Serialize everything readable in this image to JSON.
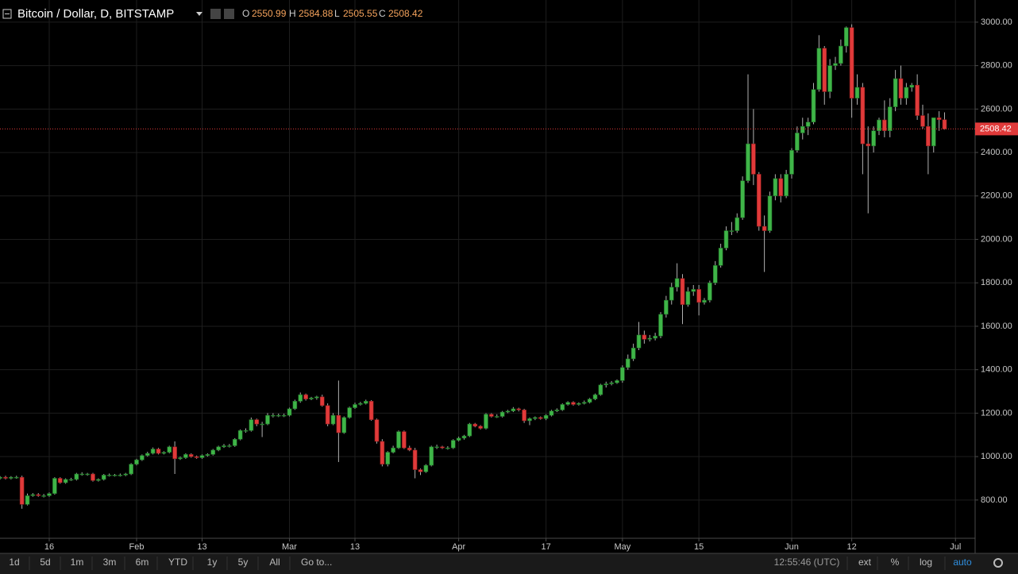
{
  "chart_data": {
    "type": "candlestick",
    "title": "Bitcoin / Dollar, D, BITSTAMP",
    "ohlc_labels": [
      "O",
      "H",
      "L",
      "C"
    ],
    "up_color": "#3fb548",
    "down_color": "#e03a3a",
    "wick_color": "#b0b0b0",
    "grid": true,
    "categories": [
      null,
      null,
      null,
      null,
      null,
      null,
      null,
      null,
      null,
      "16",
      null,
      null,
      null,
      null,
      null,
      null,
      null,
      null,
      null,
      null,
      null,
      null,
      null,
      null,
      null,
      "Feb",
      null,
      null,
      null,
      null,
      null,
      null,
      null,
      null,
      null,
      null,
      null,
      "13",
      null,
      null,
      null,
      null,
      null,
      null,
      null,
      null,
      null,
      null,
      null,
      null,
      null,
      null,
      null,
      "Mar",
      null,
      null,
      null,
      null,
      null,
      null,
      null,
      null,
      null,
      null,
      null,
      "13",
      null,
      null,
      null,
      null,
      null,
      null,
      null,
      null,
      null,
      null,
      null,
      null,
      null,
      null,
      null,
      null,
      null,
      null,
      "Apr",
      null,
      null,
      null,
      null,
      null,
      null,
      null,
      null,
      null,
      null,
      null,
      null,
      null,
      null,
      null,
      "17",
      null,
      null,
      null,
      null,
      null,
      null,
      null,
      null,
      null,
      null,
      null,
      null,
      null,
      "May",
      null,
      null,
      null,
      null,
      null,
      null,
      null,
      null,
      null,
      null,
      null,
      null,
      null,
      "15",
      null,
      null,
      null,
      null,
      null,
      null,
      null,
      null,
      null,
      null,
      null,
      null,
      null,
      null,
      null,
      null,
      "Jun",
      null,
      null,
      null,
      null,
      null,
      null,
      null,
      null,
      null,
      null,
      "12",
      null,
      null,
      null,
      null,
      null,
      null,
      null,
      null,
      null,
      null,
      null,
      null,
      null,
      null,
      null,
      null,
      null,
      null,
      "Jul"
    ],
    "open": [
      900,
      905,
      900,
      905,
      905,
      780,
      820,
      825,
      820,
      820,
      830,
      900,
      880,
      895,
      895,
      920,
      920,
      920,
      890,
      895,
      915,
      915,
      915,
      915,
      920,
      965,
      985,
      1005,
      1015,
      1035,
      1015,
      1020,
      1045,
      990,
      995,
      1010,
      1000,
      995,
      1005,
      1010,
      1030,
      1045,
      1050,
      1050,
      1080,
      1120,
      1120,
      1170,
      1150,
      1150,
      1190,
      1190,
      1190,
      1190,
      1220,
      1255,
      1285,
      1265,
      1270,
      1275,
      1235,
      1150,
      1190,
      1110,
      1180,
      1225,
      1240,
      1245,
      1255,
      1170,
      1070,
      965,
      1020,
      1040,
      1115,
      1040,
      1030,
      940,
      930,
      960,
      1045,
      1045,
      1040,
      1040,
      1075,
      1085,
      1095,
      1150,
      1140,
      1130,
      1195,
      1185,
      1185,
      1205,
      1210,
      1220,
      1215,
      1165,
      1175,
      1180,
      1175,
      1190,
      1210,
      1215,
      1240,
      1250,
      1240,
      1245,
      1250,
      1265,
      1285,
      1330,
      1335,
      1340,
      1350,
      1410,
      1450,
      1500,
      1560,
      1540,
      1545,
      1555,
      1655,
      1720,
      1780,
      1820,
      1700,
      1760,
      1770,
      1710,
      1720,
      1800,
      1880,
      1960,
      2040,
      2040,
      2100,
      2270,
      2440,
      2300,
      2060,
      2040,
      2200,
      2280,
      2200,
      2300,
      2410,
      2490,
      2520,
      2540,
      2690,
      2880,
      2680,
      2800,
      2810,
      2890,
      2975,
      2650,
      2700,
      2440,
      2430,
      2500,
      2550,
      2500,
      2610,
      2740,
      2650,
      2700,
      2710,
      2570,
      2520,
      2430,
      2560,
      2550.99,
      null,
      null
    ],
    "high": [
      910,
      912,
      910,
      912,
      912,
      830,
      832,
      832,
      828,
      835,
      905,
      905,
      900,
      902,
      925,
      928,
      925,
      925,
      900,
      920,
      922,
      920,
      922,
      925,
      970,
      990,
      1010,
      1022,
      1042,
      1040,
      1025,
      1050,
      1070,
      1000,
      1015,
      1015,
      1005,
      1010,
      1015,
      1035,
      1050,
      1058,
      1058,
      1085,
      1125,
      1130,
      1180,
      1175,
      1160,
      1200,
      1200,
      1198,
      1198,
      1225,
      1262,
      1295,
      1290,
      1275,
      1280,
      1285,
      1245,
      1200,
      1350,
      1185,
      1230,
      1248,
      1252,
      1262,
      1260,
      1175,
      1080,
      1025,
      1050,
      1120,
      1120,
      1050,
      1040,
      945,
      965,
      1050,
      1055,
      1050,
      1048,
      1080,
      1092,
      1100,
      1155,
      1155,
      1145,
      1200,
      1200,
      1195,
      1210,
      1215,
      1228,
      1225,
      1220,
      1180,
      1185,
      1185,
      1195,
      1215,
      1222,
      1245,
      1255,
      1255,
      1250,
      1258,
      1270,
      1290,
      1335,
      1345,
      1348,
      1355,
      1420,
      1470,
      1520,
      1620,
      1580,
      1560,
      1570,
      1665,
      1740,
      1800,
      1890,
      1840,
      1780,
      1790,
      1790,
      1730,
      1810,
      1900,
      1980,
      2060,
      2080,
      2120,
      2290,
      2760,
      2600,
      2310,
      2110,
      2220,
      2300,
      2300,
      2320,
      2420,
      2520,
      2560,
      2560,
      2720,
      2940,
      2890,
      2830,
      2840,
      2920,
      2980,
      2990,
      2760,
      2720,
      2520,
      2520,
      2560,
      2640,
      2650,
      2780,
      2800,
      2720,
      2720,
      2760,
      2620,
      2580,
      2560,
      2590,
      2584.88,
      null,
      null
    ],
    "low": [
      895,
      895,
      895,
      898,
      760,
      775,
      815,
      815,
      812,
      815,
      825,
      875,
      875,
      888,
      890,
      912,
      912,
      885,
      885,
      890,
      908,
      908,
      908,
      910,
      915,
      960,
      980,
      1000,
      1010,
      1010,
      1010,
      1015,
      920,
      985,
      990,
      995,
      990,
      990,
      1000,
      1005,
      1025,
      1040,
      1042,
      1045,
      1075,
      1110,
      1115,
      1140,
      1090,
      1145,
      1180,
      1182,
      1182,
      1185,
      1215,
      1248,
      1258,
      1260,
      1262,
      1230,
      1140,
      1145,
      975,
      1105,
      1175,
      1220,
      1235,
      1240,
      1165,
      1060,
      955,
      955,
      1015,
      1035,
      1035,
      1025,
      900,
      915,
      925,
      955,
      1035,
      1035,
      1032,
      1035,
      1070,
      1078,
      1090,
      1135,
      1125,
      1125,
      1180,
      1178,
      1180,
      1200,
      1205,
      1208,
      1155,
      1145,
      1168,
      1170,
      1168,
      1185,
      1205,
      1210,
      1235,
      1235,
      1235,
      1240,
      1245,
      1260,
      1280,
      1318,
      1328,
      1335,
      1340,
      1400,
      1440,
      1490,
      1520,
      1530,
      1535,
      1545,
      1640,
      1700,
      1760,
      1610,
      1690,
      1740,
      1650,
      1700,
      1710,
      1790,
      1870,
      1950,
      2020,
      2030,
      2090,
      2260,
      2250,
      2040,
      1850,
      2030,
      2180,
      2170,
      2190,
      2280,
      2400,
      2460,
      2480,
      2530,
      2680,
      2620,
      2650,
      2780,
      2800,
      2860,
      2560,
      2620,
      2300,
      2120,
      2400,
      2480,
      2470,
      2470,
      2590,
      2620,
      2620,
      2680,
      2550,
      2510,
      2300,
      2400,
      2500,
      2505.55,
      null,
      null
    ],
    "close": [
      905,
      900,
      905,
      905,
      780,
      820,
      825,
      820,
      820,
      830,
      900,
      880,
      895,
      895,
      920,
      920,
      920,
      890,
      895,
      915,
      915,
      915,
      915,
      920,
      965,
      985,
      1005,
      1015,
      1035,
      1015,
      1020,
      1045,
      990,
      995,
      1010,
      1000,
      995,
      1005,
      1010,
      1030,
      1045,
      1050,
      1050,
      1080,
      1120,
      1120,
      1170,
      1150,
      1150,
      1190,
      1190,
      1190,
      1190,
      1220,
      1255,
      1285,
      1265,
      1270,
      1275,
      1235,
      1150,
      1190,
      1110,
      1180,
      1225,
      1240,
      1245,
      1255,
      1170,
      1070,
      965,
      1020,
      1040,
      1115,
      1040,
      1030,
      940,
      930,
      960,
      1045,
      1045,
      1040,
      1040,
      1075,
      1085,
      1095,
      1150,
      1140,
      1130,
      1195,
      1185,
      1185,
      1205,
      1210,
      1220,
      1215,
      1165,
      1175,
      1180,
      1175,
      1190,
      1210,
      1215,
      1240,
      1250,
      1240,
      1245,
      1250,
      1265,
      1285,
      1330,
      1335,
      1340,
      1350,
      1410,
      1450,
      1500,
      1560,
      1540,
      1545,
      1555,
      1655,
      1720,
      1780,
      1820,
      1700,
      1760,
      1770,
      1710,
      1720,
      1800,
      1880,
      1960,
      2040,
      2040,
      2100,
      2270,
      2440,
      2300,
      2060,
      2040,
      2200,
      2280,
      2200,
      2300,
      2410,
      2490,
      2520,
      2540,
      2690,
      2880,
      2680,
      2800,
      2810,
      2890,
      2975,
      2650,
      2700,
      2440,
      2430,
      2500,
      2550,
      2500,
      2610,
      2740,
      2650,
      2700,
      2710,
      2570,
      2520,
      2430,
      2560,
      2550.99,
      2508.42,
      null,
      null
    ],
    "ylim": [
      624,
      3102
    ],
    "yticks": [
      {
        "value": 800,
        "label": "800.00"
      },
      {
        "value": 1000,
        "label": "1000.00"
      },
      {
        "value": 1200,
        "label": "1200.00"
      },
      {
        "value": 1400,
        "label": "1400.00"
      },
      {
        "value": 1600,
        "label": "1600.00"
      },
      {
        "value": 1800,
        "label": "1800.00"
      },
      {
        "value": 2000,
        "label": "2000.00"
      },
      {
        "value": 2200,
        "label": "2200.00"
      },
      {
        "value": 2400,
        "label": "2400.00"
      },
      {
        "value": 2600,
        "label": "2600.00"
      },
      {
        "value": 2800,
        "label": "2800.00"
      },
      {
        "value": 3000,
        "label": "3000.00"
      }
    ]
  },
  "toolbar": {
    "ranges": [
      "1d",
      "5d",
      "1m",
      "3m",
      "6m",
      "YTD",
      "1y",
      "5y",
      "All"
    ],
    "goto": "Go to...",
    "time": "12:55:46 (UTC)",
    "options": [
      "ext",
      "%",
      "log",
      "auto"
    ]
  }
}
